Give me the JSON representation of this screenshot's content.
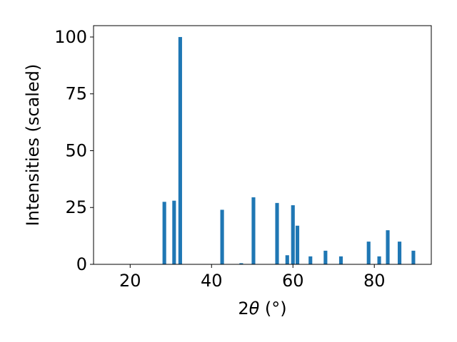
{
  "chart_data": {
    "type": "bar",
    "xlabel_prefix": "2",
    "xlabel_theta": "θ",
    "xlabel_unit": " (°)",
    "ylabel": "Intensities (scaled)",
    "xlim": [
      11,
      94
    ],
    "ylim": [
      0,
      105
    ],
    "bar_width": 0.9,
    "bar_color": "#1f77b4",
    "x_ticks": [
      20,
      40,
      60,
      80
    ],
    "y_ticks": [
      0,
      25,
      50,
      75,
      100
    ],
    "grid": false,
    "x": [
      28.4,
      30.8,
      32.3,
      42.6,
      47.3,
      50.3,
      56.1,
      58.6,
      60.0,
      61.1,
      64.3,
      68.0,
      71.8,
      78.6,
      81.2,
      83.3,
      86.2,
      89.6
    ],
    "values": [
      27.5,
      28.0,
      100.0,
      24.0,
      0.5,
      29.5,
      27.0,
      4.0,
      26.0,
      17.0,
      3.5,
      6.0,
      3.5,
      10.0,
      3.5,
      15.0,
      10.0,
      6.0
    ]
  }
}
